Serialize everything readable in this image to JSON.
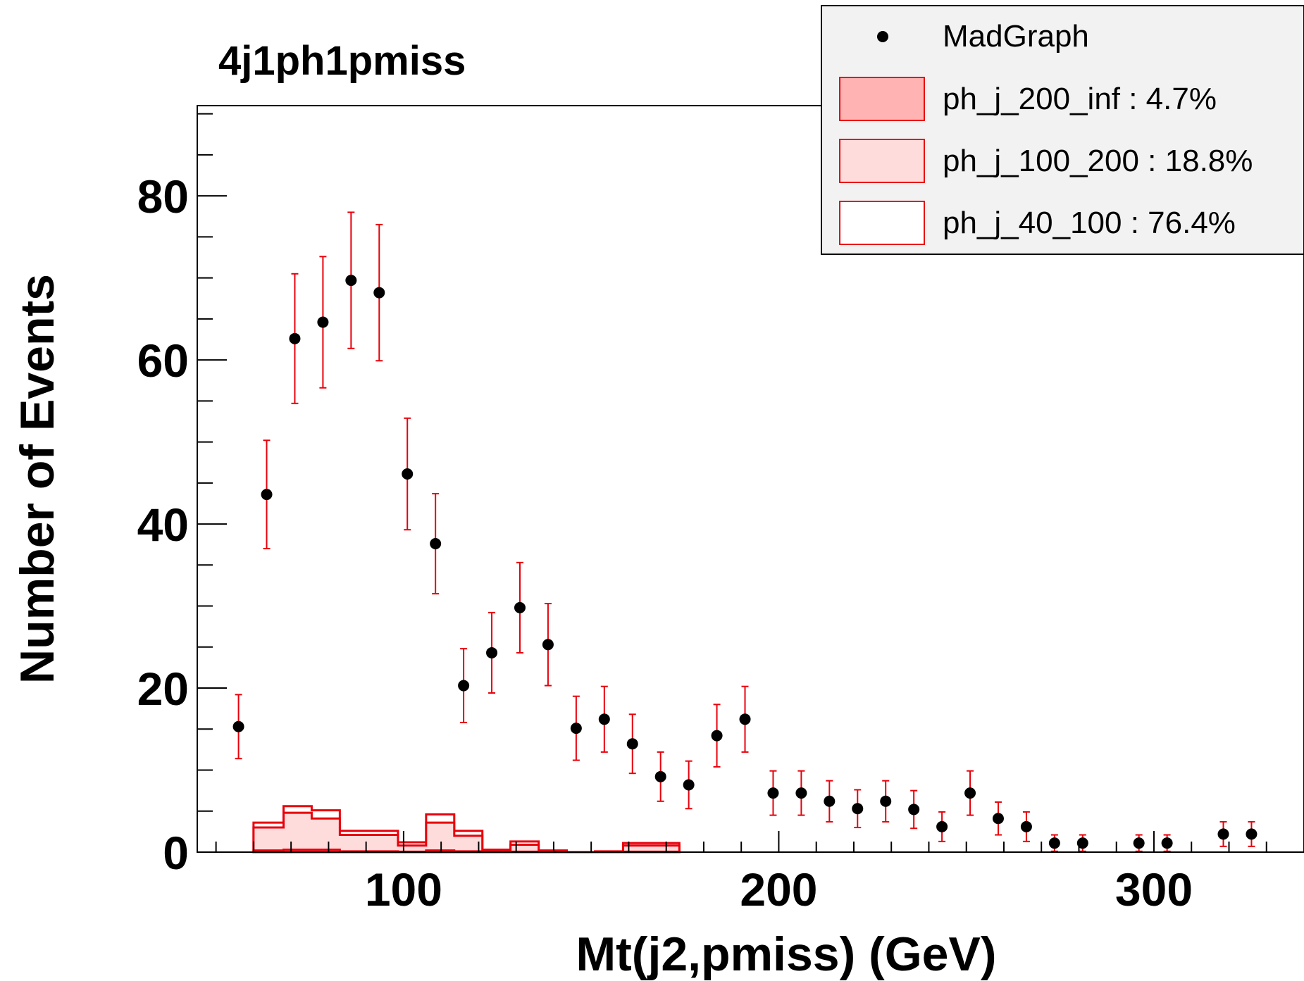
{
  "chart_data": {
    "type": "scatter",
    "title": "4j1ph1pmiss",
    "xlabel": "Mt(j2,pmiss) (GeV)",
    "ylabel": "Number of Events",
    "xlim": [
      45,
      340
    ],
    "ylim": [
      0,
      91
    ],
    "x_ticks": [
      100,
      200,
      300
    ],
    "y_ticks": [
      0,
      20,
      40,
      60,
      80
    ],
    "colors": {
      "points": "#000000",
      "error_bars": "#e8000b",
      "hist_line": "#e8000b",
      "fill_200_inf": "#ffb3b3",
      "fill_100_200": "#ffdcdc",
      "fill_40_100": "#ffffff",
      "legend_bg": "#f2f2f2"
    },
    "legend": {
      "placement": "top-right",
      "entries": [
        {
          "label": "MadGraph",
          "style": "marker"
        },
        {
          "label": "ph_j_200_inf : 4.7%",
          "style": "fill",
          "color": "#ffb3b3"
        },
        {
          "label": "ph_j_100_200 : 18.8%",
          "style": "fill",
          "color": "#ffdcdc"
        },
        {
          "label": "ph_j_40_100 : 76.4%",
          "style": "fill",
          "color": "#ffffff"
        }
      ]
    },
    "series": [
      {
        "name": "MadGraph",
        "kind": "points",
        "x": [
          56,
          63.5,
          71,
          78.5,
          86,
          93.5,
          101,
          108.5,
          116,
          123.5,
          131,
          138.5,
          146,
          153.5,
          161,
          168.5,
          176,
          183.5,
          191,
          198.5,
          206,
          213.5,
          221,
          228.5,
          236,
          243.5,
          251,
          258.5,
          266,
          273.5,
          281,
          296,
          303.5,
          318.5,
          326
        ],
        "y": [
          15.3,
          43.6,
          62.6,
          64.6,
          69.7,
          68.2,
          46.1,
          37.6,
          20.3,
          24.3,
          29.8,
          25.3,
          15.1,
          16.2,
          13.2,
          9.2,
          8.2,
          14.2,
          16.2,
          7.2,
          7.2,
          6.2,
          5.3,
          6.2,
          5.2,
          3.1,
          7.2,
          4.1,
          3.1,
          1.1,
          1.1,
          1.1,
          1.1,
          2.2,
          2.2
        ],
        "yerr": [
          3.9,
          6.6,
          7.9,
          8.0,
          8.3,
          8.3,
          6.8,
          6.1,
          4.5,
          4.9,
          5.5,
          5.0,
          3.9,
          4.0,
          3.6,
          3.0,
          2.9,
          3.8,
          4.0,
          2.7,
          2.7,
          2.5,
          2.3,
          2.5,
          2.3,
          1.8,
          2.7,
          2.0,
          1.8,
          1.0,
          1.0,
          1.0,
          1.0,
          1.5,
          1.5
        ]
      },
      {
        "name": "ph_j_40_100 : 76.4%",
        "kind": "histogram",
        "bin_edges": [
          60,
          68,
          75.5,
          83,
          91,
          98.5,
          106,
          113.5,
          121,
          128.5,
          136,
          143.5,
          151,
          158.5,
          166,
          173.5
        ],
        "values": [
          3.6,
          5.6,
          5.1,
          2.6,
          2.6,
          1.2,
          4.6,
          2.6,
          0.3,
          1.3,
          0.2,
          0.0,
          0.1,
          1.1,
          1.1
        ]
      },
      {
        "name": "ph_j_100_200 : 18.8%",
        "kind": "histogram",
        "bin_edges": [
          60,
          68,
          75.5,
          83,
          91,
          98.5,
          106,
          113.5,
          121,
          128.5,
          136,
          143.5,
          151,
          158.5,
          166,
          173.5
        ],
        "values": [
          3.0,
          4.8,
          4.1,
          2.1,
          2.1,
          0.8,
          3.6,
          2.0,
          0.15,
          0.9,
          0.1,
          0.0,
          0.05,
          0.8,
          0.8
        ]
      },
      {
        "name": "ph_j_200_inf : 4.7%",
        "kind": "histogram",
        "bin_edges": [
          60,
          68,
          75.5,
          83,
          91,
          98.5,
          106,
          113.5,
          121,
          128.5,
          136,
          143.5,
          151,
          158.5,
          166,
          173.5
        ],
        "values": [
          0.2,
          0.3,
          0.3,
          0.1,
          0.1,
          0.05,
          0.2,
          0.1,
          0.0,
          0.05,
          0.0,
          0.0,
          0.0,
          0.05,
          0.05
        ]
      }
    ]
  }
}
